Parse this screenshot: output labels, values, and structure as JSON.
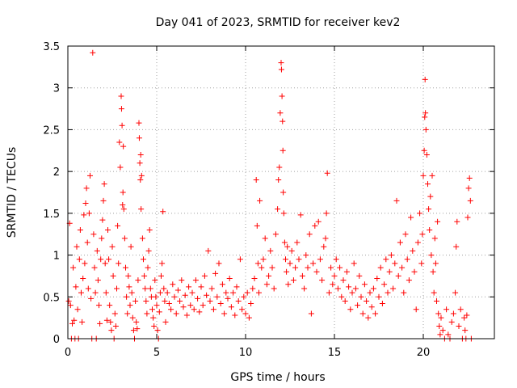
{
  "chart_data": {
    "type": "scatter",
    "title": "Day 041 of 2023, SRMTID for receiver kev2",
    "xlabel": "GPS time / hours",
    "ylabel": "SRMTID / TECUs",
    "xlim": [
      0,
      24
    ],
    "ylim": [
      0,
      3.5
    ],
    "x_ticks": [
      0,
      5,
      10,
      15,
      20
    ],
    "x_tick_labels": [
      "0",
      "5",
      "10",
      "15",
      "20"
    ],
    "y_ticks": [
      0,
      0.5,
      1,
      1.5,
      2,
      2.5,
      3,
      3.5
    ],
    "y_tick_labels": [
      "0",
      "0.5",
      "1",
      "1.5",
      "2",
      "2.5",
      "3",
      "3.5"
    ],
    "grid": true,
    "marker": "+",
    "series": [
      {
        "name": "SRMTID kev2",
        "color": "#ff0000",
        "points": [
          [
            0.05,
            0.45
          ],
          [
            0.1,
            1.38
          ],
          [
            0.15,
            0.4
          ],
          [
            0.2,
            0.0
          ],
          [
            0.25,
            0.18
          ],
          [
            0.3,
            0.85
          ],
          [
            0.35,
            0.22
          ],
          [
            0.4,
            0.0
          ],
          [
            0.45,
            0.62
          ],
          [
            0.5,
            1.1
          ],
          [
            0.55,
            0.35
          ],
          [
            0.6,
            0.0
          ],
          [
            0.65,
            0.95
          ],
          [
            0.7,
            1.3
          ],
          [
            0.75,
            0.55
          ],
          [
            0.8,
            0.2
          ],
          [
            0.85,
            0.72
          ],
          [
            0.9,
            1.48
          ],
          [
            0.95,
            0.9
          ],
          [
            1.0,
            1.62
          ],
          [
            1.05,
            1.8
          ],
          [
            1.1,
            1.15
          ],
          [
            1.15,
            0.6
          ],
          [
            1.2,
            1.5
          ],
          [
            1.25,
            1.95
          ],
          [
            1.3,
            0.48
          ],
          [
            1.35,
            0.0
          ],
          [
            1.4,
            3.42
          ],
          [
            1.45,
            1.25
          ],
          [
            1.5,
            0.85
          ],
          [
            1.55,
            0.55
          ],
          [
            1.6,
            0.0
          ],
          [
            1.65,
            1.05
          ],
          [
            1.7,
            0.7
          ],
          [
            1.75,
            0.4
          ],
          [
            1.8,
            0.18
          ],
          [
            1.85,
            0.95
          ],
          [
            1.9,
            1.2
          ],
          [
            1.95,
            1.42
          ],
          [
            2.0,
            1.65
          ],
          [
            2.05,
            1.85
          ],
          [
            2.1,
            0.9
          ],
          [
            2.15,
            0.55
          ],
          [
            2.2,
            0.22
          ],
          [
            2.25,
            1.3
          ],
          [
            2.3,
            0.95
          ],
          [
            2.35,
            0.4
          ],
          [
            2.4,
            0.2
          ],
          [
            2.45,
            0.1
          ],
          [
            2.5,
            1.1
          ],
          [
            2.55,
            0.75
          ],
          [
            2.6,
            0.0
          ],
          [
            2.65,
            0.3
          ],
          [
            2.7,
            0.15
          ],
          [
            2.75,
            0.6
          ],
          [
            2.8,
            1.35
          ],
          [
            2.85,
            0.9
          ],
          [
            2.9,
            2.35
          ],
          [
            2.95,
            2.05
          ],
          [
            3.0,
            2.9
          ],
          [
            3.02,
            2.75
          ],
          [
            3.05,
            2.55
          ],
          [
            3.08,
            1.6
          ],
          [
            3.1,
            1.75
          ],
          [
            3.12,
            2.3
          ],
          [
            3.15,
            1.55
          ],
          [
            3.2,
            1.2
          ],
          [
            3.25,
            0.85
          ],
          [
            3.3,
            0.5
          ],
          [
            3.35,
            0.3
          ],
          [
            3.4,
            0.75
          ],
          [
            3.45,
            0.62
          ],
          [
            3.5,
            0.4
          ],
          [
            3.55,
            1.1
          ],
          [
            3.6,
            0.55
          ],
          [
            3.65,
            0.25
          ],
          [
            3.7,
            0.1
          ],
          [
            3.75,
            0.0
          ],
          [
            3.8,
            0.45
          ],
          [
            3.85,
            0.2
          ],
          [
            3.9,
            0.12
          ],
          [
            3.95,
            0.7
          ],
          [
            4.0,
            2.58
          ],
          [
            4.02,
            2.4
          ],
          [
            4.05,
            2.1
          ],
          [
            4.08,
            1.9
          ],
          [
            4.1,
            2.2
          ],
          [
            4.12,
            1.55
          ],
          [
            4.15,
            1.95
          ],
          [
            4.2,
            1.2
          ],
          [
            4.25,
            0.95
          ],
          [
            4.3,
            0.75
          ],
          [
            4.35,
            0.6
          ],
          [
            4.4,
            0.45
          ],
          [
            4.45,
            0.3
          ],
          [
            4.5,
            0.85
          ],
          [
            4.55,
            1.05
          ],
          [
            4.6,
            1.3
          ],
          [
            4.65,
            0.6
          ],
          [
            4.7,
            0.5
          ],
          [
            4.75,
            0.35
          ],
          [
            4.8,
            0.25
          ],
          [
            4.85,
            0.15
          ],
          [
            4.9,
            0.7
          ],
          [
            4.95,
            0.5
          ],
          [
            5.0,
            0.4
          ],
          [
            5.05,
            0.1
          ],
          [
            5.1,
            0.0
          ],
          [
            5.15,
            0.32
          ],
          [
            5.2,
            0.55
          ],
          [
            5.25,
            0.75
          ],
          [
            5.3,
            0.9
          ],
          [
            5.35,
            1.52
          ],
          [
            5.4,
            0.6
          ],
          [
            5.45,
            0.45
          ],
          [
            5.5,
            0.2
          ],
          [
            5.6,
            0.55
          ],
          [
            5.7,
            0.42
          ],
          [
            5.8,
            0.35
          ],
          [
            5.9,
            0.65
          ],
          [
            6.0,
            0.5
          ],
          [
            6.1,
            0.3
          ],
          [
            6.2,
            0.58
          ],
          [
            6.3,
            0.45
          ],
          [
            6.4,
            0.7
          ],
          [
            6.5,
            0.38
          ],
          [
            6.6,
            0.52
          ],
          [
            6.7,
            0.28
          ],
          [
            6.8,
            0.62
          ],
          [
            6.9,
            0.4
          ],
          [
            7.0,
            0.55
          ],
          [
            7.1,
            0.35
          ],
          [
            7.2,
            0.7
          ],
          [
            7.3,
            0.48
          ],
          [
            7.4,
            0.32
          ],
          [
            7.5,
            0.62
          ],
          [
            7.6,
            0.4
          ],
          [
            7.7,
            0.75
          ],
          [
            7.8,
            0.52
          ],
          [
            7.9,
            1.05
          ],
          [
            8.0,
            0.45
          ],
          [
            8.1,
            0.6
          ],
          [
            8.2,
            0.35
          ],
          [
            8.3,
            0.78
          ],
          [
            8.4,
            0.5
          ],
          [
            8.5,
            0.9
          ],
          [
            8.6,
            0.42
          ],
          [
            8.7,
            0.65
          ],
          [
            8.8,
            0.3
          ],
          [
            8.9,
            0.55
          ],
          [
            9.0,
            0.48
          ],
          [
            9.1,
            0.72
          ],
          [
            9.2,
            0.38
          ],
          [
            9.3,
            0.55
          ],
          [
            9.4,
            0.28
          ],
          [
            9.5,
            0.62
          ],
          [
            9.6,
            0.45
          ],
          [
            9.7,
            0.95
          ],
          [
            9.8,
            0.35
          ],
          [
            9.9,
            0.5
          ],
          [
            10.0,
            0.3
          ],
          [
            10.1,
            0.55
          ],
          [
            10.2,
            0.25
          ],
          [
            10.3,
            0.42
          ],
          [
            10.4,
            0.6
          ],
          [
            10.5,
            0.72
          ],
          [
            10.6,
            1.9
          ],
          [
            10.65,
            1.35
          ],
          [
            10.7,
            0.9
          ],
          [
            10.75,
            0.55
          ],
          [
            10.8,
            1.65
          ],
          [
            10.9,
            0.85
          ],
          [
            11.0,
            0.95
          ],
          [
            11.1,
            1.2
          ],
          [
            11.2,
            0.65
          ],
          [
            11.3,
            0.75
          ],
          [
            11.4,
            1.05
          ],
          [
            11.5,
            0.85
          ],
          [
            11.6,
            0.6
          ],
          [
            11.7,
            1.25
          ],
          [
            11.8,
            1.55
          ],
          [
            11.85,
            1.9
          ],
          [
            11.9,
            2.05
          ],
          [
            11.95,
            2.7
          ],
          [
            12.0,
            3.3
          ],
          [
            12.02,
            3.22
          ],
          [
            12.05,
            2.9
          ],
          [
            12.08,
            2.6
          ],
          [
            12.1,
            2.25
          ],
          [
            12.12,
            1.75
          ],
          [
            12.15,
            1.5
          ],
          [
            12.2,
            1.15
          ],
          [
            12.25,
            0.95
          ],
          [
            12.3,
            0.8
          ],
          [
            12.35,
            1.1
          ],
          [
            12.4,
            0.65
          ],
          [
            12.5,
            0.9
          ],
          [
            12.6,
            1.05
          ],
          [
            12.7,
            0.7
          ],
          [
            12.8,
            0.85
          ],
          [
            12.9,
            1.15
          ],
          [
            13.0,
            0.95
          ],
          [
            13.1,
            1.48
          ],
          [
            13.2,
            0.75
          ],
          [
            13.3,
            0.6
          ],
          [
            13.4,
            1.0
          ],
          [
            13.5,
            0.85
          ],
          [
            13.6,
            1.25
          ],
          [
            13.7,
            0.3
          ],
          [
            13.8,
            0.9
          ],
          [
            13.9,
            1.35
          ],
          [
            14.0,
            0.8
          ],
          [
            14.1,
            1.4
          ],
          [
            14.2,
            0.95
          ],
          [
            14.3,
            0.7
          ],
          [
            14.4,
            1.1
          ],
          [
            14.5,
            1.2
          ],
          [
            14.55,
            1.5
          ],
          [
            14.6,
            1.98
          ],
          [
            14.7,
            0.55
          ],
          [
            14.8,
            0.85
          ],
          [
            14.9,
            0.65
          ],
          [
            15.0,
            0.75
          ],
          [
            15.1,
            0.95
          ],
          [
            15.2,
            0.6
          ],
          [
            15.3,
            0.85
          ],
          [
            15.4,
            0.5
          ],
          [
            15.5,
            0.7
          ],
          [
            15.6,
            0.45
          ],
          [
            15.7,
            0.8
          ],
          [
            15.8,
            0.62
          ],
          [
            15.9,
            0.35
          ],
          [
            16.0,
            0.55
          ],
          [
            16.1,
            0.9
          ],
          [
            16.2,
            0.6
          ],
          [
            16.3,
            0.4
          ],
          [
            16.4,
            0.75
          ],
          [
            16.5,
            0.5
          ],
          [
            16.6,
            0.3
          ],
          [
            16.7,
            0.65
          ],
          [
            16.8,
            0.45
          ],
          [
            16.9,
            0.25
          ],
          [
            17.0,
            0.55
          ],
          [
            17.1,
            0.38
          ],
          [
            17.2,
            0.6
          ],
          [
            17.3,
            0.3
          ],
          [
            17.4,
            0.72
          ],
          [
            17.5,
            0.5
          ],
          [
            17.6,
            0.85
          ],
          [
            17.7,
            0.42
          ],
          [
            17.8,
            0.65
          ],
          [
            17.9,
            0.95
          ],
          [
            18.0,
            0.55
          ],
          [
            18.1,
            0.8
          ],
          [
            18.2,
            1.0
          ],
          [
            18.3,
            0.6
          ],
          [
            18.4,
            0.9
          ],
          [
            18.5,
            1.65
          ],
          [
            18.6,
            0.75
          ],
          [
            18.7,
            1.15
          ],
          [
            18.8,
            0.85
          ],
          [
            18.9,
            0.55
          ],
          [
            19.0,
            1.25
          ],
          [
            19.1,
            0.95
          ],
          [
            19.2,
            0.7
          ],
          [
            19.3,
            1.45
          ],
          [
            19.4,
            1.05
          ],
          [
            19.5,
            0.8
          ],
          [
            19.6,
            0.35
          ],
          [
            19.7,
            1.15
          ],
          [
            19.8,
            1.5
          ],
          [
            19.9,
            0.9
          ],
          [
            19.95,
            1.25
          ],
          [
            20.0,
            1.95
          ],
          [
            20.05,
            2.25
          ],
          [
            20.08,
            2.65
          ],
          [
            20.1,
            3.1
          ],
          [
            20.12,
            2.7
          ],
          [
            20.15,
            2.5
          ],
          [
            20.2,
            2.2
          ],
          [
            20.25,
            1.85
          ],
          [
            20.3,
            1.55
          ],
          [
            20.35,
            1.3
          ],
          [
            20.4,
            1.7
          ],
          [
            20.45,
            1.0
          ],
          [
            20.5,
            1.95
          ],
          [
            20.55,
            0.8
          ],
          [
            20.6,
            0.55
          ],
          [
            20.65,
            1.2
          ],
          [
            20.7,
            0.9
          ],
          [
            20.75,
            0.45
          ],
          [
            20.8,
            1.4
          ],
          [
            20.85,
            0.3
          ],
          [
            20.9,
            0.15
          ],
          [
            20.95,
            0.05
          ],
          [
            21.0,
            0.25
          ],
          [
            21.1,
            0.1
          ],
          [
            21.2,
            0.0
          ],
          [
            21.3,
            0.35
          ],
          [
            21.4,
            0.05
          ],
          [
            21.5,
            0.0
          ],
          [
            21.6,
            0.2
          ],
          [
            21.7,
            0.3
          ],
          [
            21.8,
            0.55
          ],
          [
            21.85,
            1.1
          ],
          [
            21.9,
            1.4
          ],
          [
            22.0,
            0.15
          ],
          [
            22.1,
            0.35
          ],
          [
            22.2,
            0.0
          ],
          [
            22.3,
            0.25
          ],
          [
            22.35,
            0.1
          ],
          [
            22.4,
            0.0
          ],
          [
            22.45,
            0.28
          ],
          [
            22.5,
            1.45
          ],
          [
            22.55,
            1.8
          ],
          [
            22.6,
            1.92
          ],
          [
            22.65,
            1.65
          ],
          [
            22.7,
            0.0
          ]
        ]
      }
    ]
  }
}
